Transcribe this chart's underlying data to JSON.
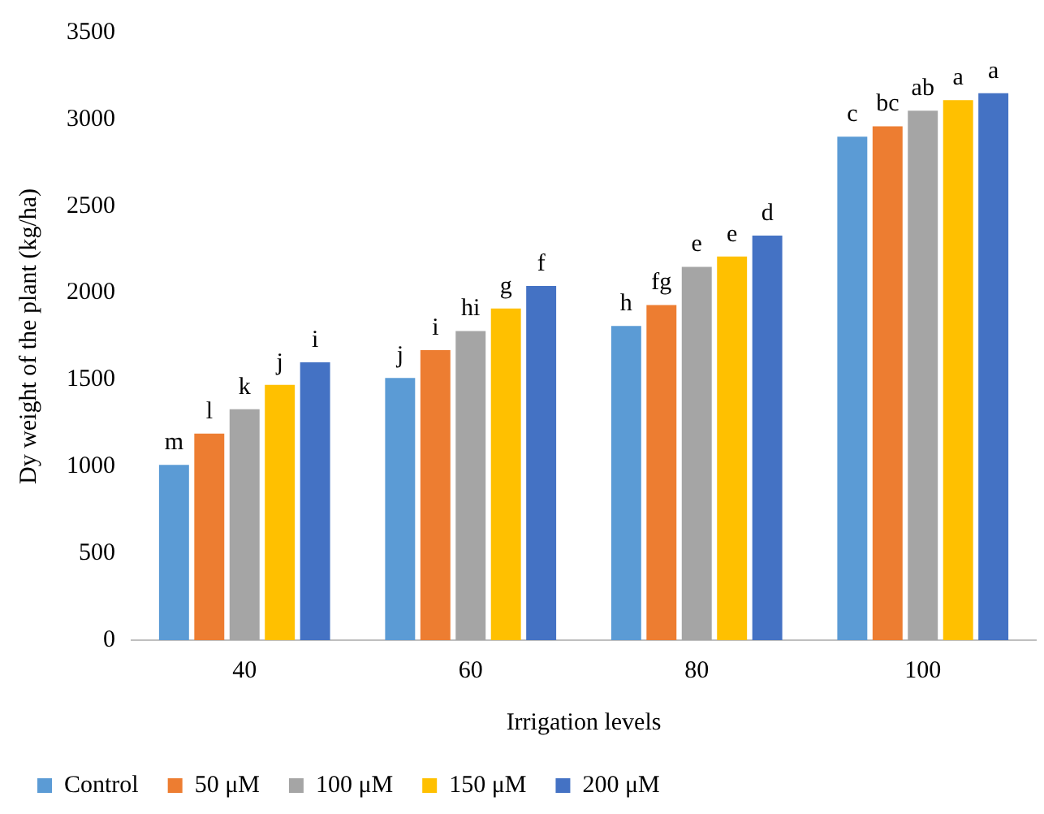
{
  "chart_data": {
    "type": "bar",
    "xlabel": "Irrigation levels",
    "ylabel": "Dy weight of the plant (kg/ha)",
    "categories": [
      "40",
      "60",
      "80",
      "100"
    ],
    "series": [
      {
        "name": "Control",
        "color": "#5b9bd5",
        "values": [
          1010,
          1510,
          1810,
          2900
        ],
        "value_labels": [
          "m",
          "j",
          "h",
          "c"
        ]
      },
      {
        "name": "50 μM",
        "color": "#ed7d31",
        "values": [
          1190,
          1670,
          1930,
          2960
        ],
        "value_labels": [
          "l",
          "i",
          "fg",
          "bc"
        ]
      },
      {
        "name": "100 μM",
        "color": "#a5a5a5",
        "values": [
          1330,
          1780,
          2150,
          3050
        ],
        "value_labels": [
          "k",
          "hi",
          "e",
          "ab"
        ]
      },
      {
        "name": "150 μM",
        "color": "#ffc000",
        "values": [
          1470,
          1910,
          2210,
          3110
        ],
        "value_labels": [
          "j",
          "g",
          "e",
          "a"
        ]
      },
      {
        "name": "200 μM",
        "color": "#4472c4",
        "values": [
          1600,
          2040,
          2330,
          3150
        ],
        "value_labels": [
          "i",
          "f",
          "d",
          "a"
        ]
      }
    ],
    "ylim": [
      0,
      3500
    ],
    "yticks": [
      0,
      500,
      1000,
      1500,
      2000,
      2500,
      3000,
      3500
    ],
    "grid": false,
    "legend": "bottom"
  }
}
